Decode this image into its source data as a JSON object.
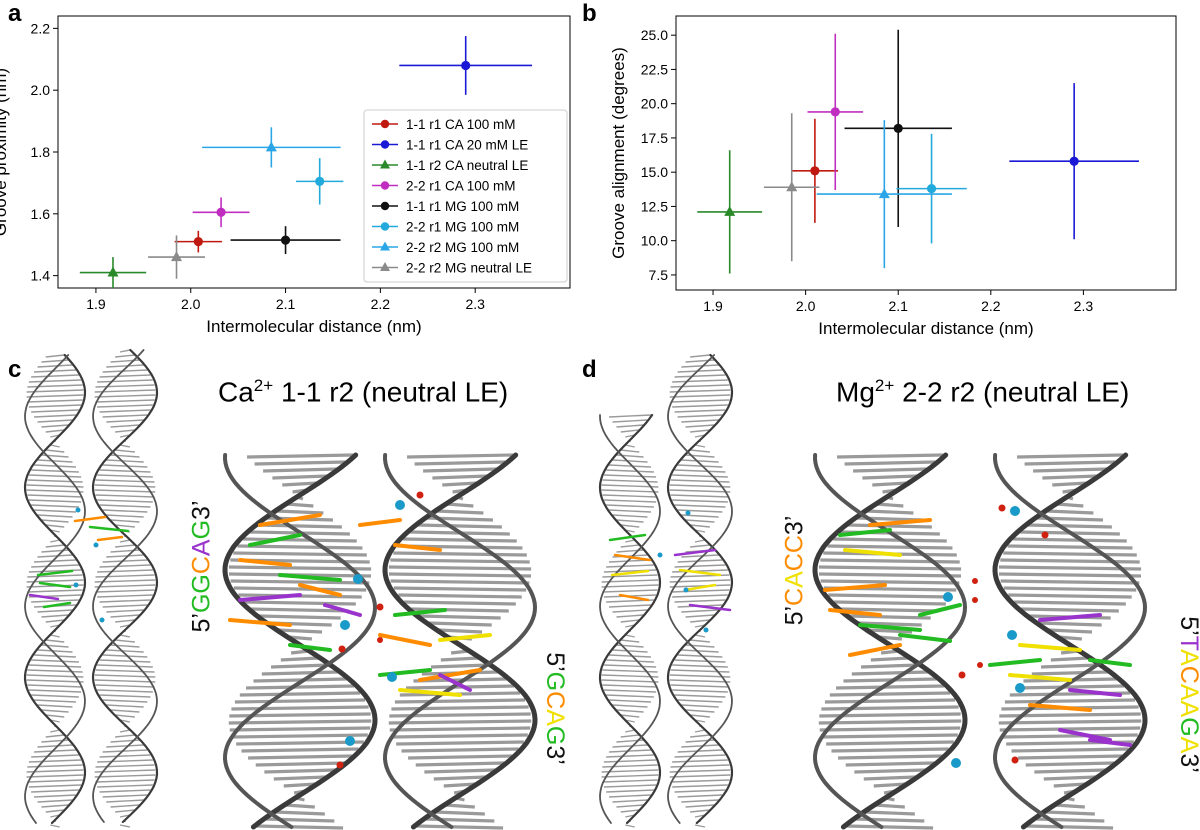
{
  "figure": {
    "panels": {
      "a": "a",
      "b": "b",
      "c": "c",
      "d": "d"
    }
  },
  "colors": {
    "red": "#c0190f",
    "blue": "#1a1ad6",
    "green": "#2a8a2a",
    "magenta": "#c02ec0",
    "black": "#111111",
    "cyan": "#22aadd",
    "lightblue": "#2aa6e8",
    "gray": "#8a8a8a",
    "base_green": "#22bb22",
    "base_orange": "#ff8c00",
    "base_yellow": "#f0e000",
    "base_purple": "#9a33cc",
    "ion_cyan": "#1a9ac8",
    "ion_red": "#d02010"
  },
  "chart_data": [
    {
      "type": "scatter",
      "panel": "a",
      "xlabel": "Intermolecular distance (nm)",
      "ylabel": "Groove proximity (nm)",
      "xlim": [
        1.86,
        2.4
      ],
      "ylim": [
        1.36,
        2.24
      ],
      "xticks": [
        "1.9",
        "2.0",
        "2.1",
        "2.2",
        "2.3"
      ],
      "xtick_values": [
        1.9,
        2.0,
        2.1,
        2.2,
        2.3
      ],
      "yticks": [
        "1.4",
        "1.6",
        "1.8",
        "2.0",
        "2.2"
      ],
      "ytick_values": [
        1.4,
        1.6,
        1.8,
        2.0,
        2.2
      ],
      "legend_position": "lower-right",
      "series": [
        {
          "name": "1-1 r1 CA 100 mM",
          "color": "red",
          "marker": "circle",
          "x": 2.008,
          "y": 1.51,
          "xerr": 0.025,
          "yerr": 0.035
        },
        {
          "name": "1-1 r1 CA 20 mM LE",
          "color": "blue",
          "marker": "circle",
          "x": 2.29,
          "y": 2.08,
          "xerr": 0.07,
          "yerr": 0.095
        },
        {
          "name": "1-1 r2 CA neutral LE",
          "color": "green",
          "marker": "triangle",
          "x": 1.918,
          "y": 1.41,
          "xerr": 0.035,
          "yerr": 0.05
        },
        {
          "name": "2-2 r1 CA 100 mM",
          "color": "magenta",
          "marker": "circle",
          "x": 2.032,
          "y": 1.605,
          "xerr": 0.03,
          "yerr": 0.048
        },
        {
          "name": "1-1 r1 MG 100 mM",
          "color": "black",
          "marker": "circle",
          "x": 2.1,
          "y": 1.515,
          "xerr": 0.058,
          "yerr": 0.045
        },
        {
          "name": "2-2 r1 MG 100 mM",
          "color": "cyan",
          "marker": "circle",
          "x": 2.136,
          "y": 1.705,
          "xerr": 0.025,
          "yerr": 0.075
        },
        {
          "name": "2-2 r2 MG 100 mM",
          "color": "lightblue",
          "marker": "triangle",
          "x": 2.085,
          "y": 1.815,
          "xerr": 0.073,
          "yerr": 0.065
        },
        {
          "name": "2-2 r2 MG neutral LE",
          "color": "gray",
          "marker": "triangle",
          "x": 1.985,
          "y": 1.46,
          "xerr": 0.03,
          "yerr": 0.07
        }
      ]
    },
    {
      "type": "scatter",
      "panel": "b",
      "xlabel": "Intermolecular distance (nm)",
      "ylabel": "Groove alignment (degrees)",
      "xlim": [
        1.86,
        2.4
      ],
      "ylim": [
        6.4,
        26.4
      ],
      "xticks": [
        "1.9",
        "2.0",
        "2.1",
        "2.2",
        "2.3"
      ],
      "xtick_values": [
        1.9,
        2.0,
        2.1,
        2.2,
        2.3
      ],
      "yticks": [
        "7.5",
        "10.0",
        "12.5",
        "15.0",
        "17.5",
        "20.0",
        "22.5",
        "25.0"
      ],
      "ytick_values": [
        7.5,
        10.0,
        12.5,
        15.0,
        17.5,
        20.0,
        22.5,
        25.0
      ],
      "series": [
        {
          "name": "1-1 r1 CA 100 mM",
          "color": "red",
          "marker": "circle",
          "x": 2.01,
          "y": 15.1,
          "xerr": 0.025,
          "yerr": 3.8
        },
        {
          "name": "1-1 r1 CA 20 mM LE",
          "color": "blue",
          "marker": "circle",
          "x": 2.29,
          "y": 15.8,
          "xerr": 0.07,
          "yerr": 5.7
        },
        {
          "name": "1-1 r2 CA neutral LE",
          "color": "green",
          "marker": "triangle",
          "x": 1.918,
          "y": 12.1,
          "xerr": 0.035,
          "yerr": 4.5
        },
        {
          "name": "2-2 r1 CA 100 mM",
          "color": "magenta",
          "marker": "circle",
          "x": 2.032,
          "y": 19.4,
          "xerr": 0.03,
          "yerr": 5.7
        },
        {
          "name": "1-1 r1 MG 100 mM",
          "color": "black",
          "marker": "circle",
          "x": 2.1,
          "y": 18.2,
          "xerr": 0.058,
          "yerr": 7.2
        },
        {
          "name": "2-2 r1 MG 100 mM",
          "color": "cyan",
          "marker": "circle",
          "x": 2.136,
          "y": 13.8,
          "xerr": 0.038,
          "yerr": 4.0
        },
        {
          "name": "2-2 r2 MG 100 mM",
          "color": "lightblue",
          "marker": "triangle",
          "x": 2.085,
          "y": 13.4,
          "xerr": 0.073,
          "yerr": 5.4
        },
        {
          "name": "2-2 r2 MG neutral LE",
          "color": "gray",
          "marker": "triangle",
          "x": 1.985,
          "y": 13.9,
          "xerr": 0.03,
          "yerr": 5.4
        }
      ]
    }
  ],
  "panel_c": {
    "title_element": "Ca",
    "title_charge": "2+",
    "title_rest": " 1-1 r2 (neutral LE)",
    "seq_left": [
      {
        "t": "5’",
        "c": "black"
      },
      {
        "t": "G",
        "c": "base_green"
      },
      {
        "t": "G",
        "c": "base_green"
      },
      {
        "t": "C",
        "c": "base_orange"
      },
      {
        "t": "A",
        "c": "base_purple"
      },
      {
        "t": "G",
        "c": "base_green"
      },
      {
        "t": "3’",
        "c": "black"
      }
    ],
    "seq_right": [
      {
        "t": "5’",
        "c": "black"
      },
      {
        "t": "G",
        "c": "base_green"
      },
      {
        "t": "C",
        "c": "base_orange"
      },
      {
        "t": "A",
        "c": "base_yellow"
      },
      {
        "t": "G",
        "c": "base_green"
      },
      {
        "t": "3’",
        "c": "black"
      }
    ]
  },
  "panel_d": {
    "title_element": "Mg",
    "title_charge": "2+",
    "title_rest": " 2-2 r2 (neutral LE)",
    "seq_left": [
      {
        "t": "5’",
        "c": "black"
      },
      {
        "t": "C",
        "c": "base_orange"
      },
      {
        "t": "A",
        "c": "base_yellow"
      },
      {
        "t": "C",
        "c": "base_orange"
      },
      {
        "t": "C",
        "c": "base_orange"
      },
      {
        "t": "3’",
        "c": "black"
      }
    ],
    "seq_right": [
      {
        "t": "5’",
        "c": "black"
      },
      {
        "t": "T",
        "c": "base_purple"
      },
      {
        "t": "A",
        "c": "base_yellow"
      },
      {
        "t": "C",
        "c": "base_orange"
      },
      {
        "t": "A",
        "c": "base_yellow"
      },
      {
        "t": "A",
        "c": "base_yellow"
      },
      {
        "t": "G",
        "c": "base_green"
      },
      {
        "t": "A",
        "c": "base_yellow"
      },
      {
        "t": "3’",
        "c": "black"
      }
    ]
  }
}
